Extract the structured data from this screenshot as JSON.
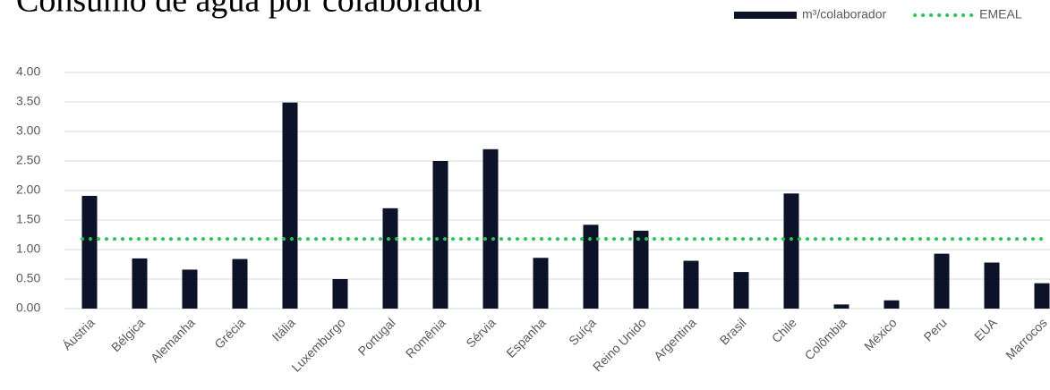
{
  "chart_data": {
    "type": "bar",
    "title": "Consumo de água por colaborador",
    "categories": [
      "Áustria",
      "Bélgica",
      "Alemanha",
      "Grécia",
      "Itália",
      "Luxemburgo",
      "Portugal",
      "Romênia",
      "Sérvia",
      "Espanha",
      "Suíça",
      "Reino Unido",
      "Argentina",
      "Brasil",
      "Chile",
      "Colômbia",
      "México",
      "Peru",
      "EUA",
      "Marrocos"
    ],
    "series": [
      {
        "name": "m³/colaborador",
        "type": "bar",
        "color": "#0c1328",
        "values": [
          1.91,
          0.85,
          0.66,
          0.84,
          3.49,
          0.5,
          1.7,
          2.5,
          2.7,
          0.86,
          1.42,
          1.32,
          0.81,
          0.62,
          1.95,
          0.07,
          0.14,
          0.93,
          0.78,
          0.43
        ]
      },
      {
        "name": "EMEAL",
        "type": "line",
        "color": "#1ecb55",
        "values": [
          1.18,
          1.18,
          1.18,
          1.18,
          1.18,
          1.18,
          1.18,
          1.18,
          1.18,
          1.18,
          1.18,
          1.18,
          1.18,
          1.18,
          1.18,
          1.18,
          1.18,
          1.18,
          1.18,
          1.18
        ]
      }
    ],
    "ylim": [
      0,
      4
    ],
    "yticks": [
      {
        "value": 0,
        "label": "0.00"
      },
      {
        "value": 0.5,
        "label": "0.50"
      },
      {
        "value": 1,
        "label": "1.00"
      },
      {
        "value": 1.5,
        "label": "1.50"
      },
      {
        "value": 2,
        "label": "2.00"
      },
      {
        "value": 2.5,
        "label": "2.50"
      },
      {
        "value": 3,
        "label": "3.00"
      },
      {
        "value": 3.5,
        "label": "3.50"
      },
      {
        "value": 4,
        "label": "4.00"
      }
    ],
    "grid": true,
    "legend": "top-right"
  }
}
